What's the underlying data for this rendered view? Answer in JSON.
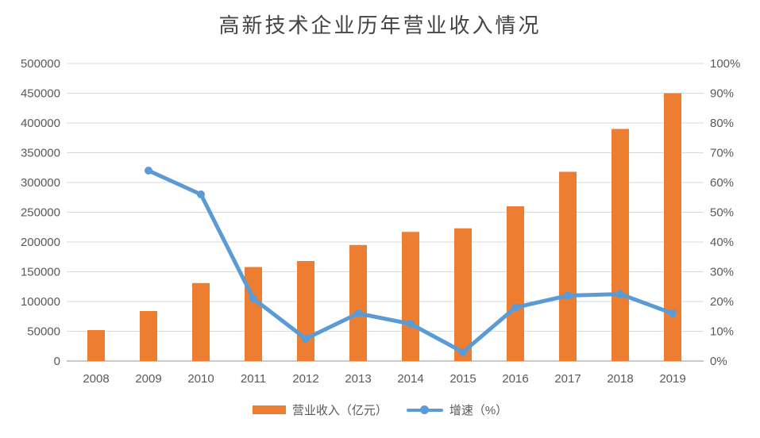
{
  "title": "高新技术企业历年营业收入情况",
  "colors": {
    "bar": "#ED7D31",
    "line": "#5B9BD5",
    "grid": "#D9D9D9",
    "axis": "#C9C9C9",
    "text": "#595959"
  },
  "legend": {
    "items": [
      {
        "label": "营业收入（亿元）",
        "swatch": "bar"
      },
      {
        "label": "增速（%）",
        "swatch": "line"
      }
    ]
  },
  "chart_data": {
    "type": "bar",
    "subtype": "combo bar + line, dual axis",
    "title": "高新技术企业历年营业收入情况",
    "categories": [
      "2008",
      "2009",
      "2010",
      "2011",
      "2012",
      "2013",
      "2014",
      "2015",
      "2016",
      "2017",
      "2018",
      "2019"
    ],
    "series": [
      {
        "name": "营业收入（亿元）",
        "type": "bar",
        "axis": "left",
        "values": [
          52000,
          84000,
          131000,
          158000,
          168000,
          195000,
          217000,
          223000,
          260000,
          318000,
          390000,
          450000
        ]
      },
      {
        "name": "增速（%）",
        "type": "line",
        "axis": "right",
        "values": [
          null,
          64,
          56,
          21,
          7.5,
          16,
          12.5,
          3,
          18,
          22,
          22.5,
          16
        ]
      }
    ],
    "left_axis": {
      "min": 0,
      "max": 500000,
      "step": 50000,
      "ticks": [
        "0",
        "50000",
        "100000",
        "150000",
        "200000",
        "250000",
        "300000",
        "350000",
        "400000",
        "450000",
        "500000"
      ]
    },
    "right_axis": {
      "min": 0,
      "max": 100,
      "step": 10,
      "ticks": [
        "0%",
        "10%",
        "20%",
        "30%",
        "40%",
        "50%",
        "60%",
        "70%",
        "80%",
        "90%",
        "100%"
      ]
    },
    "grid": true,
    "legend_position": "bottom"
  }
}
